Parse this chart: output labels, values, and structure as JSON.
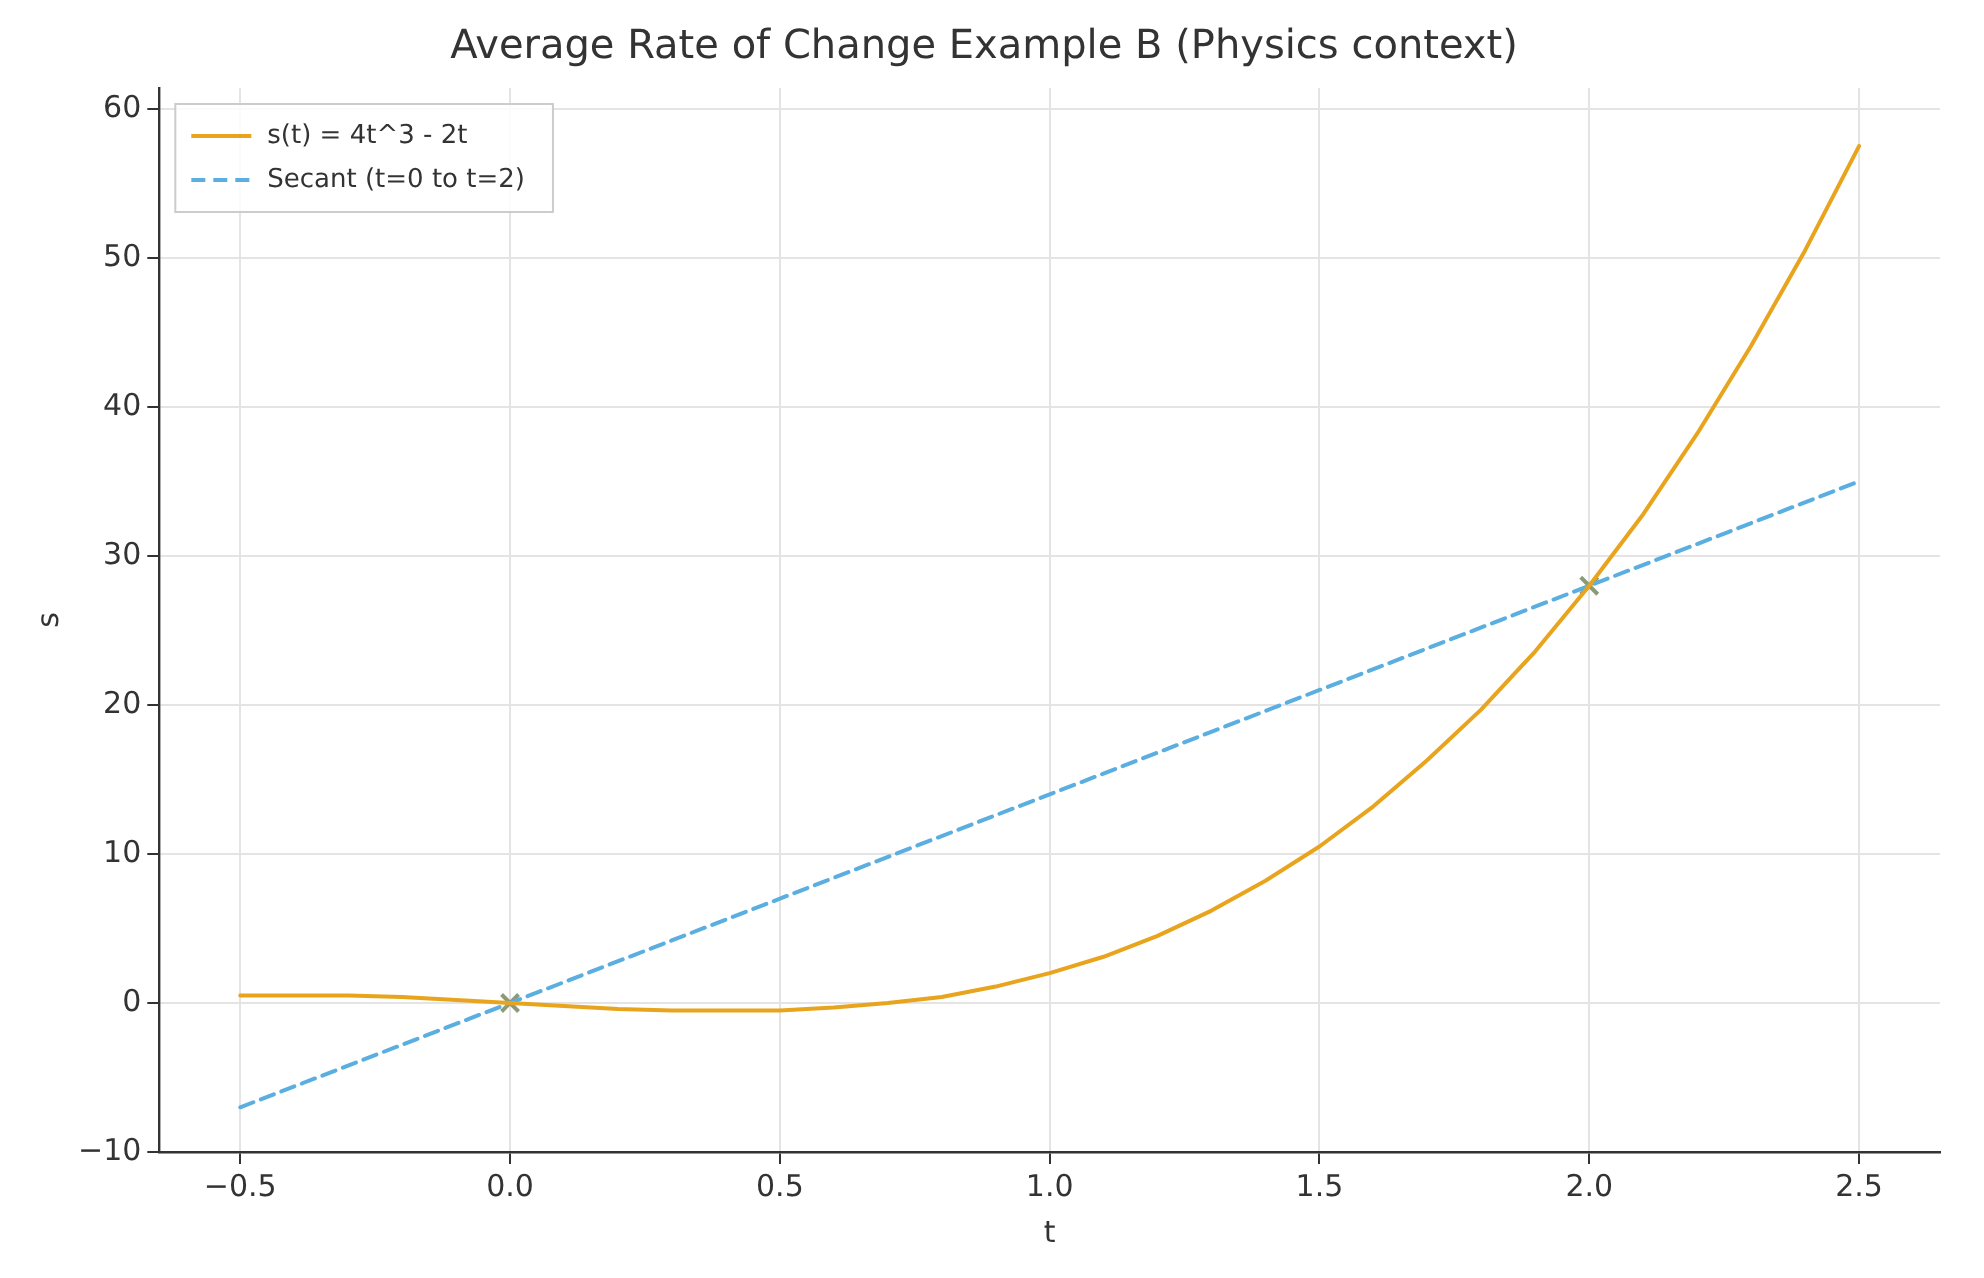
{
  "chart_data": {
    "type": "line",
    "title": "Average Rate of Change Example B (Physics context)",
    "xlabel": "t",
    "ylabel": "s",
    "xlim": [
      -0.65,
      2.65
    ],
    "ylim": [
      -10,
      61.4
    ],
    "xticks": [
      {
        "value": -0.5,
        "label": "−0.5"
      },
      {
        "value": 0,
        "label": "0.0"
      },
      {
        "value": 0.5,
        "label": "0.5"
      },
      {
        "value": 1,
        "label": "1.0"
      },
      {
        "value": 1.5,
        "label": "1.5"
      },
      {
        "value": 2,
        "label": "2.0"
      },
      {
        "value": 2.5,
        "label": "2.5"
      }
    ],
    "yticks": [
      {
        "value": -10,
        "label": "−10"
      },
      0,
      10,
      20,
      30,
      40,
      50,
      60
    ],
    "grid": true,
    "legend": "top left",
    "series": [
      {
        "name": "s(t) = 4t^3 - 2t",
        "type": "line",
        "line_style": "solid",
        "color": "#e8a41c",
        "x": [
          -0.5,
          -0.4,
          -0.3,
          -0.2,
          -0.1,
          0,
          0.1,
          0.2,
          0.3,
          0.4,
          0.5,
          0.6,
          0.7,
          0.8,
          0.9,
          1.0,
          1.1,
          1.2,
          1.3,
          1.4,
          1.5,
          1.6,
          1.7,
          1.8,
          1.9,
          2.0,
          2.1,
          2.2,
          2.3,
          2.4,
          2.5
        ],
        "values": [
          0.5,
          0.5,
          0.5,
          0.4,
          0.2,
          0,
          -0.2,
          -0.4,
          -0.5,
          -0.5,
          -0.5,
          -0.3,
          0,
          0.4,
          1.1,
          2,
          3.1,
          4.5,
          6.2,
          8.2,
          10.5,
          13.2,
          16.3,
          19.7,
          23.6,
          28,
          32.8,
          38.2,
          44.1,
          50.5,
          57.5
        ]
      },
      {
        "name": "Secant (t=0 to t=2)",
        "type": "line",
        "line_style": "dashed",
        "color": "#5aaee0",
        "x": [
          -0.5,
          2.5
        ],
        "values": [
          -7,
          35
        ]
      },
      {
        "type": "scatter",
        "marker": "cross",
        "color": "#8c9a78",
        "x": [
          0,
          2
        ],
        "values": [
          0,
          28
        ]
      }
    ]
  }
}
